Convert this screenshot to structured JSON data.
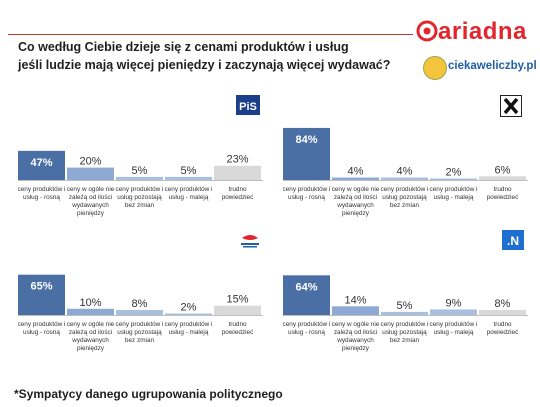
{
  "header": {
    "title_line1": "Co według Ciebie dzieje się z cenami produktów i usług",
    "title_line2": "jeśli ludzie mają więcej pieniędzy i zaczynają więcej wydawać?",
    "brand": "ariadna",
    "site": "ciekaweliczby.pl"
  },
  "footer": {
    "note": "*Sympatycy danego ugrupowania politycznego"
  },
  "colors": {
    "accent_red": "#e2262d",
    "bar_dark": "#4a6fa5",
    "bar_mid": "#8ea9d4",
    "bar_light": "#a9bfe0",
    "bar_grey": "#d9d9d9",
    "site_blue": "#1f5fa8"
  },
  "chart_data": [
    {
      "type": "bar",
      "party_logo": "PiS-logo",
      "categories": [
        "ceny produktów i usług - rosną",
        "ceny w ogóle nie zależą od ilości wydawanych pieniędzy",
        "ceny produktów i usług pozostają bez zmian",
        "ceny produktów i usług - maleją",
        "trudno powiedzieć"
      ],
      "values": [
        47,
        20,
        5,
        5,
        23
      ],
      "value_labels": [
        "47%",
        "20%",
        "5%",
        "5%",
        "23%"
      ],
      "ylim": [
        0,
        100
      ]
    },
    {
      "type": "bar",
      "party_logo": "Kukiz-logo",
      "categories": [
        "ceny produktów i usług - rosną",
        "ceny w ogóle nie zależą od ilości wydawanych pieniędzy",
        "ceny produktów i usług pozostają bez zmian",
        "ceny produktów i usług - maleją",
        "trudno powiedzieć"
      ],
      "values": [
        84,
        4,
        4,
        2,
        6
      ],
      "value_labels": [
        "84%",
        "4%",
        "4%",
        "2%",
        "6%"
      ],
      "ylim": [
        0,
        100
      ]
    },
    {
      "type": "bar",
      "party_logo": "Platforma-Obywatelska-logo",
      "categories": [
        "ceny produktów i usług - rosną",
        "ceny w ogóle nie zależą od ilości wydawanych pieniędzy",
        "ceny produktów i usług pozostają bez zmian",
        "ceny produktów i usług - maleją",
        "trudno powiedzieć"
      ],
      "values": [
        65,
        10,
        8,
        2,
        15
      ],
      "value_labels": [
        "65%",
        "10%",
        "8%",
        "2%",
        "15%"
      ],
      "ylim": [
        0,
        100
      ]
    },
    {
      "type": "bar",
      "party_logo": "Nowoczesna-logo",
      "categories": [
        "ceny produktów i usług - rosną",
        "ceny w ogóle nie zależą od ilości wydawanych pieniędzy",
        "ceny produktów i usług pozostają bez zmian",
        "ceny produktów i usług - maleją",
        "trudno powiedzieć"
      ],
      "values": [
        64,
        14,
        5,
        9,
        8
      ],
      "value_labels": [
        "64%",
        "14%",
        "5%",
        "9%",
        "8%"
      ],
      "ylim": [
        0,
        100
      ]
    }
  ]
}
